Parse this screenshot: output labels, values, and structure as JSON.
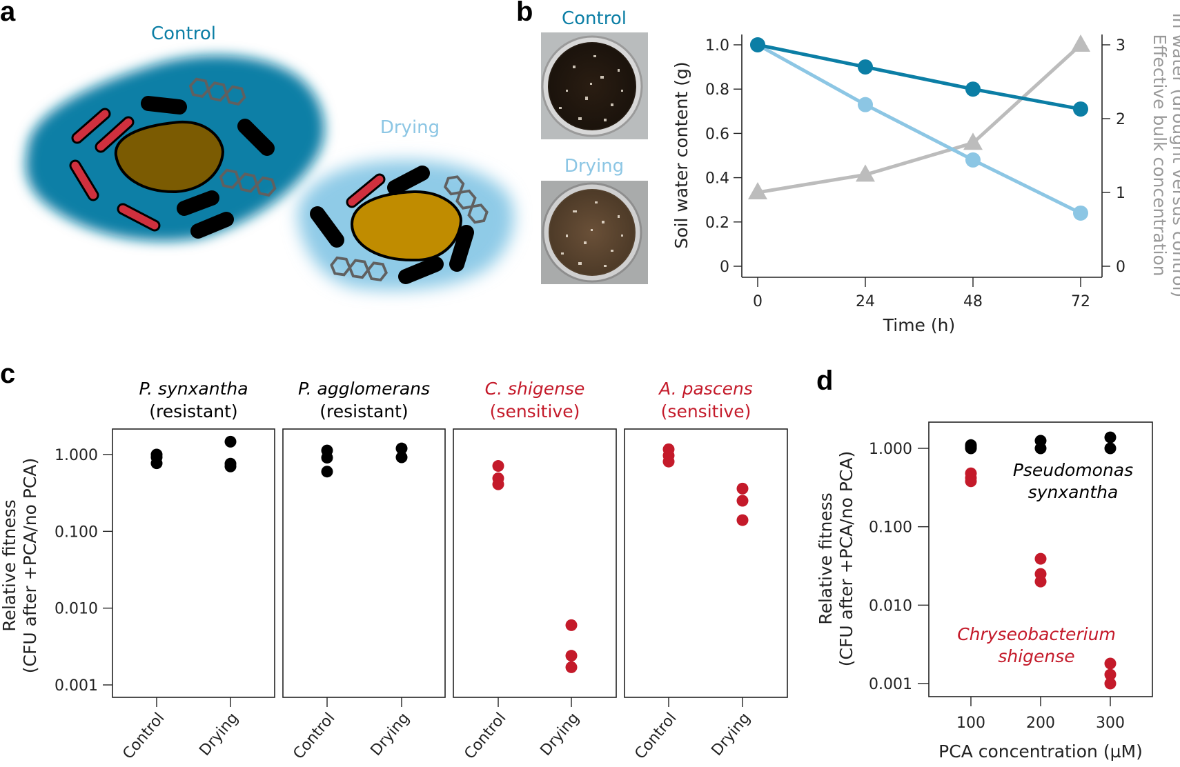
{
  "colors": {
    "control": "#0b7ea5",
    "drying": "#8cc6e4",
    "ratio": "#bcbcbc",
    "resistant": "#000000",
    "sensitive": "#c41a2a",
    "soil_control": "#7b5b02",
    "soil_drying": "#c08c00",
    "water_control": "#0a7fa6",
    "water_drying": "#8fcbe7",
    "aromatic": "#5f5f5f"
  },
  "panels": {
    "a": {
      "letter": "a",
      "control_label": "Control",
      "drying_label": "Drying"
    },
    "b": {
      "letter": "b",
      "photo_control_label": "Control",
      "photo_drying_label": "Drying"
    },
    "c": {
      "letter": "c"
    },
    "d": {
      "letter": "d"
    }
  },
  "chart_data": [
    {
      "id": "b",
      "type": "line",
      "title": "",
      "xlabel": "Time (h)",
      "ylabel": "Soil water content (g)",
      "y2label_line1": "Effective bulk concentration",
      "y2label_line2": "in water (drought versus control)",
      "x": [
        0,
        24,
        48,
        72
      ],
      "xticks": [
        "0",
        "24",
        "48",
        "72"
      ],
      "ylim": [
        0,
        1.0
      ],
      "yticks": [
        "0",
        "0.2",
        "0.4",
        "0.6",
        "0.8",
        "1.0"
      ],
      "y2lim": [
        0,
        3
      ],
      "y2ticks": [
        "0",
        "1",
        "2",
        "3"
      ],
      "grid": false,
      "series": [
        {
          "name": "Control",
          "axis": "left",
          "marker": "circle",
          "values": [
            1.0,
            0.9,
            0.8,
            0.71
          ]
        },
        {
          "name": "Drying",
          "axis": "left",
          "marker": "circle",
          "values": [
            1.0,
            0.73,
            0.48,
            0.24
          ]
        },
        {
          "name": "Effective concentration (drought/control)",
          "axis": "right",
          "marker": "triangle",
          "values": [
            1.0,
            1.24,
            1.67,
            3.0
          ]
        }
      ]
    },
    {
      "id": "c",
      "type": "scatter",
      "ylabel_line1": "Relative fitness",
      "ylabel_line2": "(CFU after +PCA/no PCA)",
      "yscale": "log",
      "ylim": [
        0.001,
        1.0
      ],
      "yticks": [
        "1.000",
        "0.100",
        "0.010",
        "0.001"
      ],
      "grid": false,
      "facets": [
        {
          "species": "P. synxantha",
          "status": "(resistant)",
          "group": "resistant",
          "categories": [
            "Control",
            "Drying"
          ],
          "values": [
            [
              1.0,
              0.92,
              0.77
            ],
            [
              1.47,
              0.76,
              0.7
            ]
          ]
        },
        {
          "species": "P. agglomerans",
          "status": "(resistant)",
          "group": "resistant",
          "categories": [
            "Control",
            "Drying"
          ],
          "values": [
            [
              1.13,
              0.91,
              0.6
            ],
            [
              1.2,
              0.92
            ]
          ]
        },
        {
          "species": "C. shigense",
          "status": "(sensitive)",
          "group": "sensitive",
          "categories": [
            "Control",
            "Drying"
          ],
          "values": [
            [
              0.71,
              0.49,
              0.41
            ],
            [
              0.006,
              0.0024,
              0.0017
            ]
          ]
        },
        {
          "species": "A. pascens",
          "status": "(sensitive)",
          "group": "sensitive",
          "categories": [
            "Control",
            "Drying"
          ],
          "values": [
            [
              1.17,
              0.97,
              0.81
            ],
            [
              0.36,
              0.25,
              0.14
            ]
          ]
        }
      ]
    },
    {
      "id": "d",
      "type": "scatter",
      "xlabel": "PCA concentration (µM)",
      "ylabel_line1": "Relative fitness",
      "ylabel_line2": "(CFU after +PCA/no PCA)",
      "yscale": "log",
      "ylim": [
        0.001,
        1.0
      ],
      "yticks": [
        "1.000",
        "0.100",
        "0.010",
        "0.001"
      ],
      "x": [
        100,
        200,
        300
      ],
      "xticks": [
        "100",
        "200",
        "300"
      ],
      "grid": false,
      "series": [
        {
          "name_line1": "Pseudomonas",
          "name_line2": "synxantha",
          "group": "resistant",
          "values": [
            [
              1.1,
              1.05,
              1.0
            ],
            [
              1.25,
              1.0
            ],
            [
              1.38,
              1.0
            ]
          ]
        },
        {
          "name_line1": "Chryseobacterium",
          "name_line2": "shigense",
          "group": "sensitive",
          "values": [
            [
              0.48,
              0.42,
              0.38
            ],
            [
              0.039,
              0.025,
              0.02
            ],
            [
              0.0018,
              0.0013,
              0.001
            ]
          ]
        }
      ]
    }
  ]
}
